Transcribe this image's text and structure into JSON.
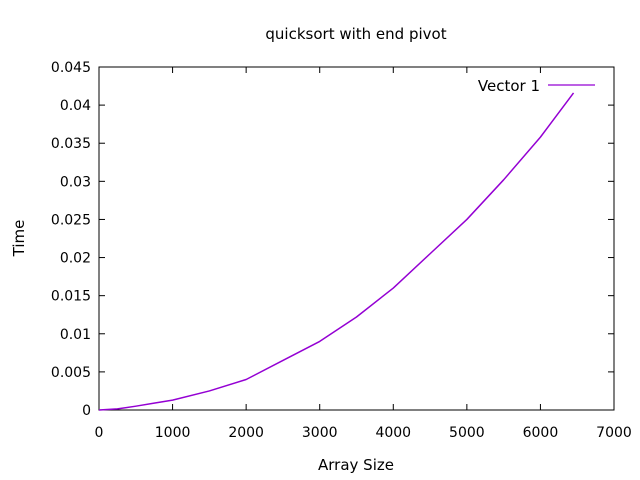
{
  "chart_data": {
    "type": "line",
    "title": "quicksort with end pivot",
    "xlabel": "Array Size",
    "ylabel": "Time",
    "xlim": [
      0,
      7000
    ],
    "ylim": [
      0,
      0.045
    ],
    "x_ticks": [
      0,
      1000,
      2000,
      3000,
      4000,
      5000,
      6000,
      7000
    ],
    "x_tick_labels": [
      "0",
      "1000",
      "2000",
      "3000",
      "4000",
      "5000",
      "6000",
      "7000"
    ],
    "y_ticks": [
      0,
      0.005,
      0.01,
      0.015,
      0.02,
      0.025,
      0.03,
      0.035,
      0.04,
      0.045
    ],
    "y_tick_labels": [
      "0",
      "0.005",
      "0.01",
      "0.015",
      "0.02",
      "0.025",
      "0.03",
      "0.035",
      "0.04",
      "0.045"
    ],
    "grid": false,
    "legend_position": "top-right",
    "series": [
      {
        "name": "Vector 1",
        "color": "#9400d3",
        "x": [
          0,
          250,
          500,
          750,
          1000,
          1500,
          2000,
          2500,
          3000,
          3500,
          4000,
          4500,
          5000,
          5500,
          6000,
          6450
        ],
        "y": [
          0,
          0.00015,
          0.0005,
          0.0009,
          0.0013,
          0.0025,
          0.004,
          0.0065,
          0.009,
          0.0122,
          0.016,
          0.0205,
          0.025,
          0.0302,
          0.0358,
          0.0416
        ]
      }
    ]
  }
}
